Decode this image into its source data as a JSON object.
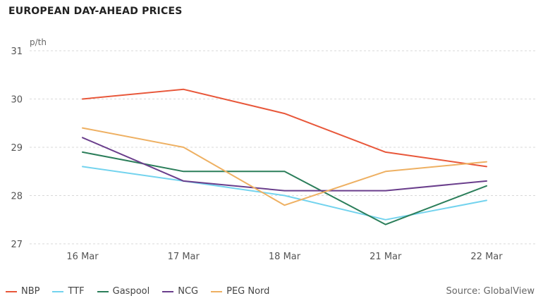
{
  "page": {
    "title": "EUROPEAN DAY-AHEAD PRICES",
    "source": "Source: GlobalView"
  },
  "chart_data": {
    "type": "line",
    "title": "EUROPEAN DAY-AHEAD PRICES",
    "ylabel": "p/th",
    "xlabel": "",
    "categories": [
      "16 Mar",
      "17 Mar",
      "18 Mar",
      "21 Mar",
      "22 Mar"
    ],
    "ylim": [
      27,
      31
    ],
    "yticks": [
      27,
      28,
      29,
      30,
      31
    ],
    "grid": true,
    "legend_position": "bottom-left",
    "series": [
      {
        "name": "NBP",
        "color": "#e8573a",
        "values": [
          30.0,
          30.2,
          29.7,
          28.9,
          28.6
        ]
      },
      {
        "name": "TTF",
        "color": "#73d3ee",
        "values": [
          28.6,
          28.3,
          28.0,
          27.5,
          27.9
        ]
      },
      {
        "name": "Gaspool",
        "color": "#2b7e5a",
        "values": [
          28.9,
          28.5,
          28.5,
          27.4,
          28.2
        ]
      },
      {
        "name": "NCG",
        "color": "#6a3e8c",
        "values": [
          29.2,
          28.3,
          28.1,
          28.1,
          28.3
        ]
      },
      {
        "name": "PEG Nord",
        "color": "#eeb062",
        "values": [
          29.4,
          29.0,
          27.8,
          28.5,
          28.7
        ]
      }
    ]
  }
}
